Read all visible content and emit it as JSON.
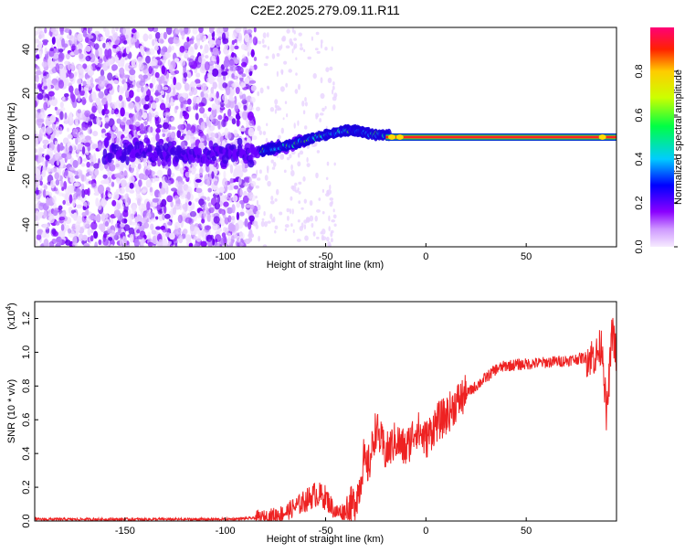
{
  "title": "C2E2.2025.279.09.11.R11",
  "chart_data": [
    {
      "type": "heatmap",
      "name": "spectrogram",
      "xlabel": "Height of straight line (km)",
      "ylabel": "Frequency (Hz)",
      "xlim": [
        -195,
        95
      ],
      "ylim": [
        -50,
        50
      ],
      "xticks": [
        -150,
        -100,
        -50,
        0,
        50
      ],
      "yticks": [
        -40,
        -20,
        0,
        20,
        40
      ],
      "track": {
        "x": [
          -85,
          -75,
          -65,
          -55,
          -45,
          -40,
          -35,
          -30,
          -25,
          -20,
          -15,
          -10,
          -5,
          0,
          95
        ],
        "y": [
          -7,
          -5,
          -3,
          0,
          2,
          3,
          3,
          2,
          1,
          1,
          1,
          0,
          0,
          0,
          0
        ]
      },
      "noise_x_range": [
        -195,
        -85
      ],
      "colorbar": {
        "label": "Normalized spectral amplitude",
        "range": [
          0.0,
          1.0
        ],
        "ticks": [
          "0.0",
          "0.2",
          "0.4",
          "0.6",
          "0.8"
        ]
      }
    },
    {
      "type": "line",
      "name": "snr",
      "xlabel": "Height of straight line (km)",
      "ylabel": "SNR (10 * v/v)",
      "yscale_note": "(x10",
      "yscale_exp": "4",
      "xlim": [
        -195,
        95
      ],
      "ylim": [
        0,
        1.3
      ],
      "xticks": [
        -150,
        -100,
        -50,
        0,
        50
      ],
      "yticks": [
        "0.0",
        "0.2",
        "0.4",
        "0.6",
        "0.8",
        "1.0",
        "1.2"
      ],
      "color": "#ee2222",
      "series": [
        {
          "name": "SNR",
          "x": [
            -195,
            -150,
            -100,
            -80,
            -70,
            -60,
            -55,
            -50,
            -45,
            -40,
            -36,
            -33,
            -31,
            -30,
            -28,
            -25,
            -20,
            -15,
            -10,
            -5,
            0,
            5,
            10,
            15,
            20,
            25,
            30,
            35,
            40,
            50,
            60,
            70,
            80,
            85,
            88,
            90,
            93,
            95
          ],
          "y": [
            0.01,
            0.01,
            0.01,
            0.02,
            0.05,
            0.12,
            0.16,
            0.14,
            0.05,
            0.06,
            0.1,
            0.2,
            0.38,
            0.3,
            0.35,
            0.55,
            0.4,
            0.48,
            0.42,
            0.55,
            0.48,
            0.58,
            0.62,
            0.7,
            0.75,
            0.8,
            0.85,
            0.9,
            0.92,
            0.93,
            0.94,
            0.95,
            0.97,
            0.98,
            1.05,
            0.6,
            1.15,
            0.95
          ]
        }
      ]
    }
  ]
}
